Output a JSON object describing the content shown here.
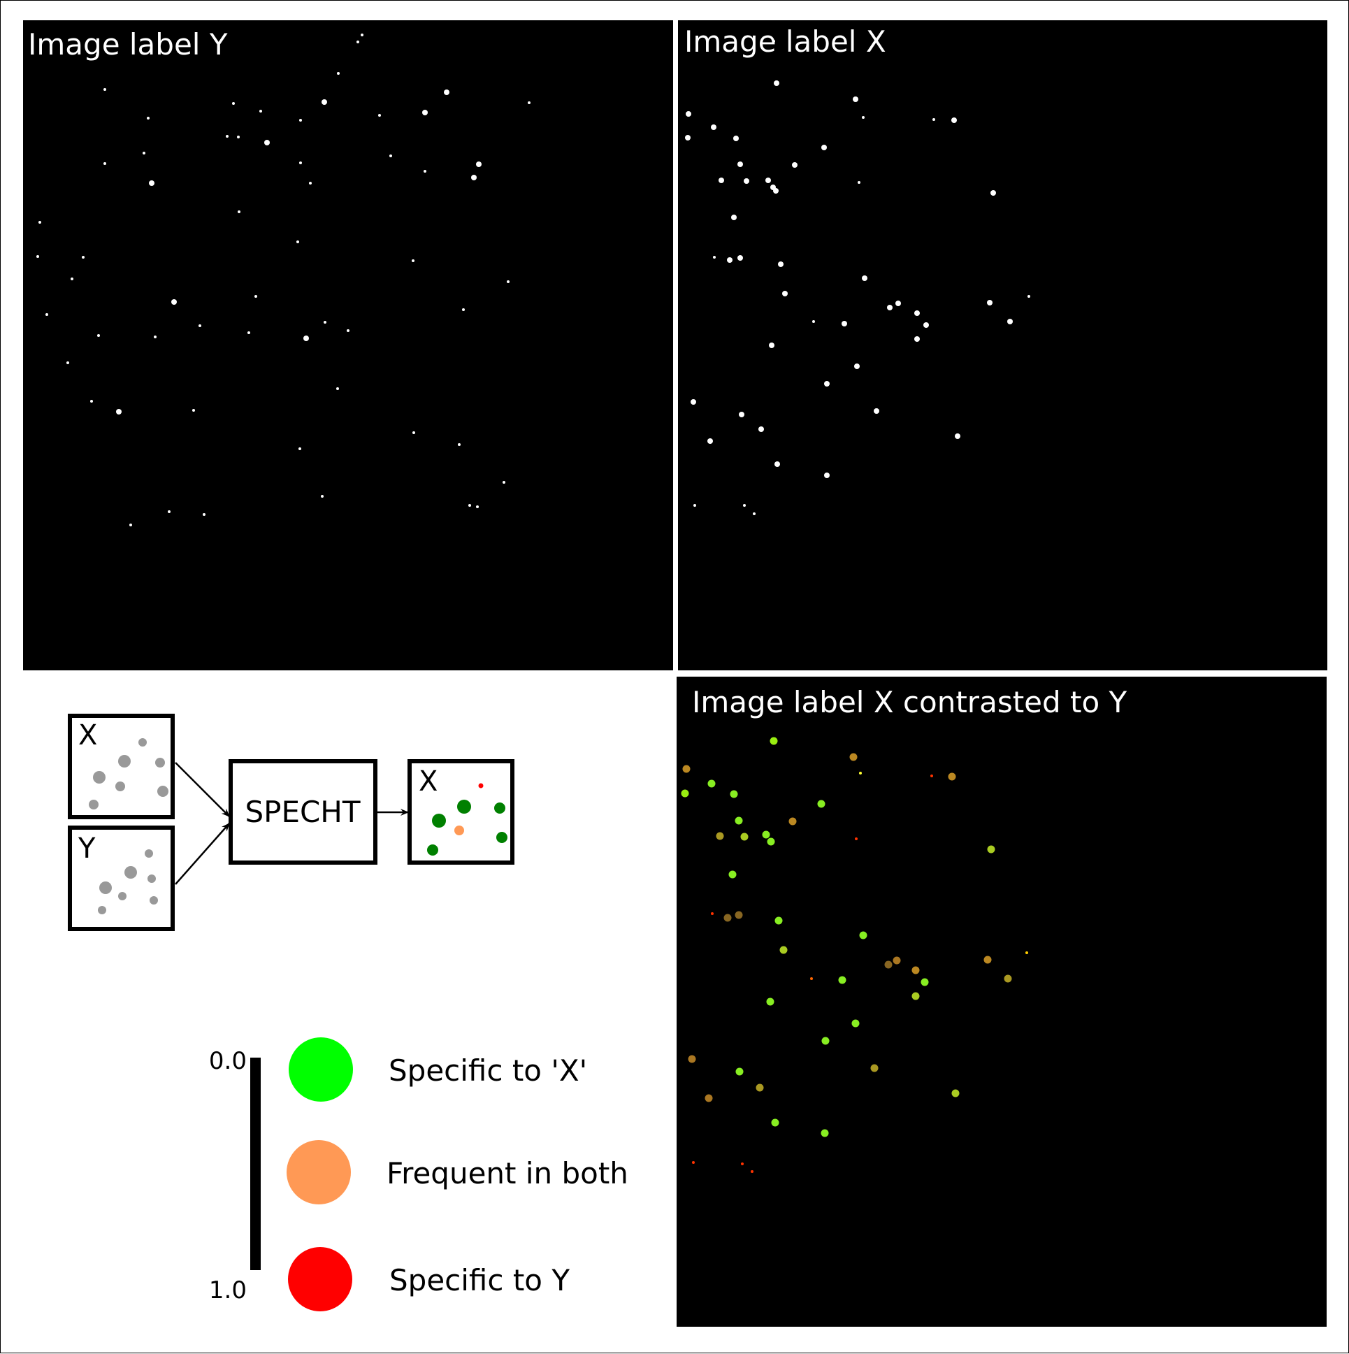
{
  "panels": {
    "y_title": "Image label Y",
    "x_title": "Image label X",
    "contrast_title": "Image label X contrasted to Y"
  },
  "diagram": {
    "box_x_label": "X",
    "box_y_label": "Y",
    "method_label": "SPECHT",
    "result_label": "X"
  },
  "colorbar": {
    "top_label": "0.0",
    "bottom_label": "1.0"
  },
  "legend": [
    {
      "label": "Specific to 'X'",
      "color": "#00ff00"
    },
    {
      "label": "Frequent in both",
      "color": "#ff9955"
    },
    {
      "label": "Specific to Y",
      "color": "#ff0000"
    }
  ],
  "colors": {
    "background": "#000000",
    "spot": "#ffffff",
    "schematic_spot": "#999999",
    "schematic_green": "#008000",
    "schematic_orange": "#ff9955",
    "schematic_red": "#ff0000"
  }
}
